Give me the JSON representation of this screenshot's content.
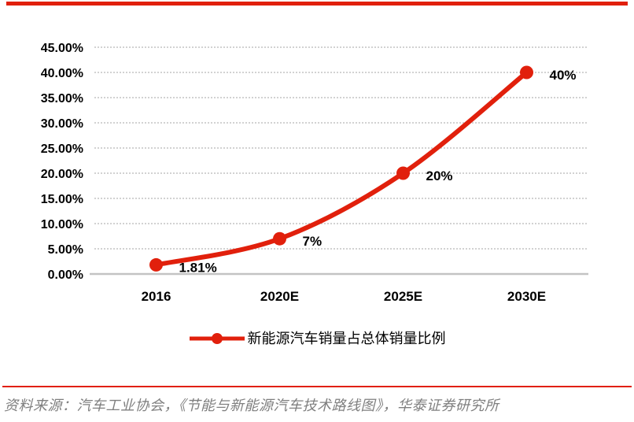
{
  "page": {
    "background": "#ffffff",
    "accent_red": "#e1200c",
    "grid_color": "#cccccc",
    "axis_color": "#c3c3c3",
    "text_color": "#000000",
    "source_color": "#7f7f7f"
  },
  "chart_data": {
    "type": "line",
    "title": "",
    "legend": "新能源汽车销量占总体销量比例",
    "legend_position": "bottom",
    "categories": [
      "2016",
      "2020E",
      "2025E",
      "2030E"
    ],
    "series": [
      {
        "name": "新能源汽车销量占总体销量比例",
        "values": [
          1.81,
          7,
          20,
          40
        ],
        "labels": [
          "1.81%",
          "7%",
          "20%",
          "40%"
        ],
        "color": "#e1200c",
        "marker": "circle",
        "smooth": true
      }
    ],
    "ylim": [
      0,
      45
    ],
    "y_tick_step": 5,
    "y_tick_labels": [
      "0.00%",
      "5.00%",
      "10.00%",
      "15.00%",
      "20.00%",
      "25.00%",
      "30.00%",
      "35.00%",
      "40.00%",
      "45.00%"
    ],
    "grid": "dashed-horizontal",
    "xlabel": "",
    "ylabel": ""
  },
  "footer": {
    "source": "资料来源：汽车工业协会，《节能与新能源汽车技术路线图》，华泰证券研究所"
  }
}
